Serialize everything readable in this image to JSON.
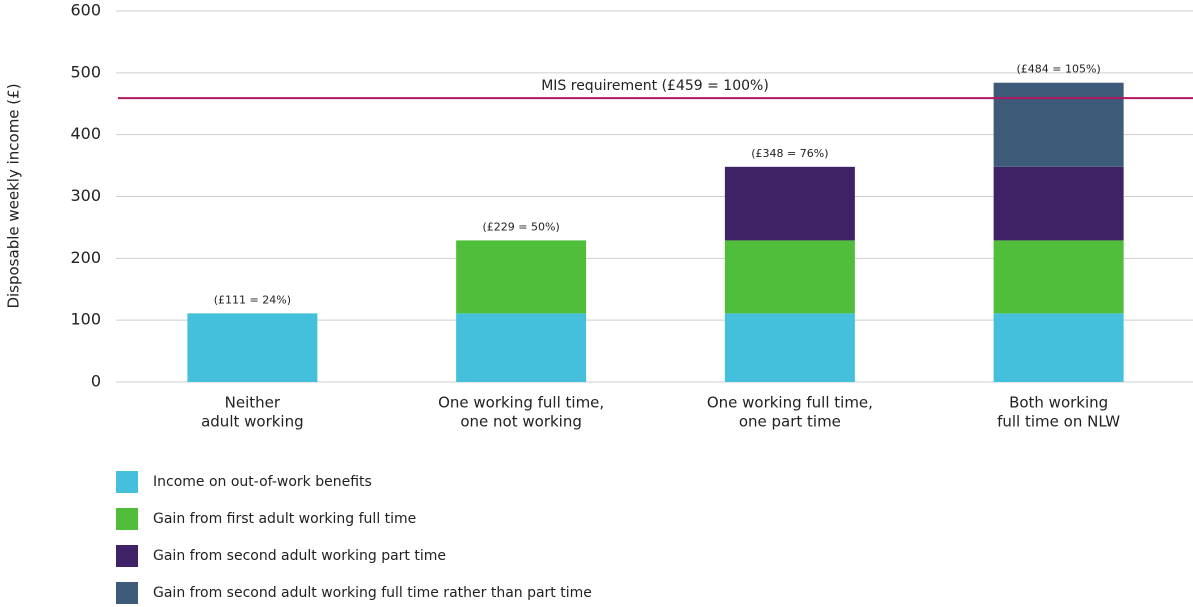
{
  "chart_data": {
    "type": "stacked_bar",
    "y_label": "Disposable weekly income (£)",
    "categories": [
      [
        "Neither",
        "adult working"
      ],
      [
        "One working full time,",
        "one not working"
      ],
      [
        "One working full time,",
        "one part time"
      ],
      [
        "Both working",
        "full time on NLW"
      ]
    ],
    "series": [
      {
        "name": "Income on out-of-work benefits",
        "color": "#45c0dc",
        "values": [
          111,
          111,
          111,
          111
        ]
      },
      {
        "name": "Gain from first adult working full time",
        "color": "#50be3a",
        "values": [
          null,
          118,
          118,
          118
        ]
      },
      {
        "name": "Gain from second adult working part time",
        "color": "#3f2266",
        "values": [
          null,
          null,
          119,
          119
        ]
      },
      {
        "name": "Gain from second adult working full time rather than part time",
        "color": "#3d5a78",
        "values": [
          null,
          null,
          null,
          136
        ]
      }
    ],
    "total_labels": [
      "(£111 = 24%)",
      "(£229 = 50%)",
      "(£348 = 76%)",
      "(£484 = 105%)"
    ],
    "reference_line": {
      "value": 459,
      "label": "MIS requirement (£459 = 100%)",
      "color": "#b0175f"
    },
    "ylim": [
      0,
      600
    ],
    "yticks": [
      0,
      100,
      200,
      300,
      400,
      500,
      600
    ],
    "grid": true
  }
}
